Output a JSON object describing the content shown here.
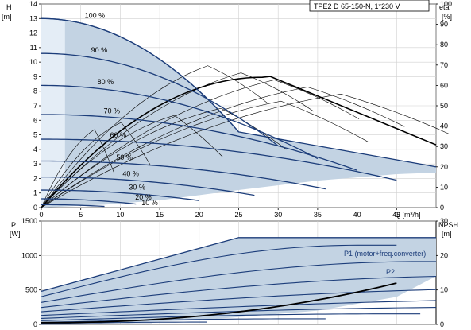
{
  "chart_data": [
    {
      "type": "line",
      "model": "TPE2 D 65-150-N, 1*230 V",
      "y_title": "H",
      "y_unit": "[m]",
      "y2_title": "eta",
      "y2_unit": "[%]",
      "x_title": "Q [m³/h]",
      "xlim": [
        0,
        50
      ],
      "ylim": [
        0,
        14
      ],
      "y2lim": [
        0,
        100
      ],
      "x_ticks": [
        0,
        5,
        10,
        15,
        20,
        25,
        30,
        35,
        40,
        45
      ],
      "y_ticks": [
        0,
        1,
        2,
        3,
        4,
        5,
        6,
        7,
        8,
        9,
        10,
        11,
        12,
        13,
        14
      ],
      "y2_ticks": [
        0,
        10,
        20,
        30,
        40,
        50,
        60,
        70,
        80,
        90,
        100
      ],
      "speed_curves": [
        {
          "name": "100 %",
          "h0": 13.0,
          "qmax": 25
        },
        {
          "name": "90 %",
          "h0": 10.6,
          "qmax": 30
        },
        {
          "name": "80 %",
          "h0": 8.4,
          "qmax": 35
        },
        {
          "name": "70 %",
          "h0": 6.4,
          "qmax": 40
        },
        {
          "name": "60 %",
          "h0": 4.7,
          "qmax": 45
        },
        {
          "name": "50 %",
          "h0": 3.2,
          "qmax": 36
        },
        {
          "name": "40 %",
          "h0": 2.1,
          "qmax": 27
        },
        {
          "name": "30 %",
          "h0": 1.2,
          "qmax": 20
        },
        {
          "name": "20 %",
          "h0": 0.6,
          "qmax": 12
        },
        {
          "name": "10 %",
          "h0": 0.2,
          "qmax": 8
        }
      ]
    },
    {
      "type": "line",
      "y_title": "P",
      "y_unit": "[W]",
      "y2_title": "NPSH",
      "y2_unit": "[m]",
      "xlim": [
        0,
        50
      ],
      "ylim": [
        0,
        1500
      ],
      "y2lim": [
        0,
        30
      ],
      "y_ticks": [
        0,
        500,
        1000,
        1500
      ],
      "y2_ticks": [
        0,
        10,
        20,
        30
      ],
      "series": [
        {
          "name": "P1 (motor+freq.converter)"
        },
        {
          "name": "P2"
        }
      ]
    }
  ]
}
